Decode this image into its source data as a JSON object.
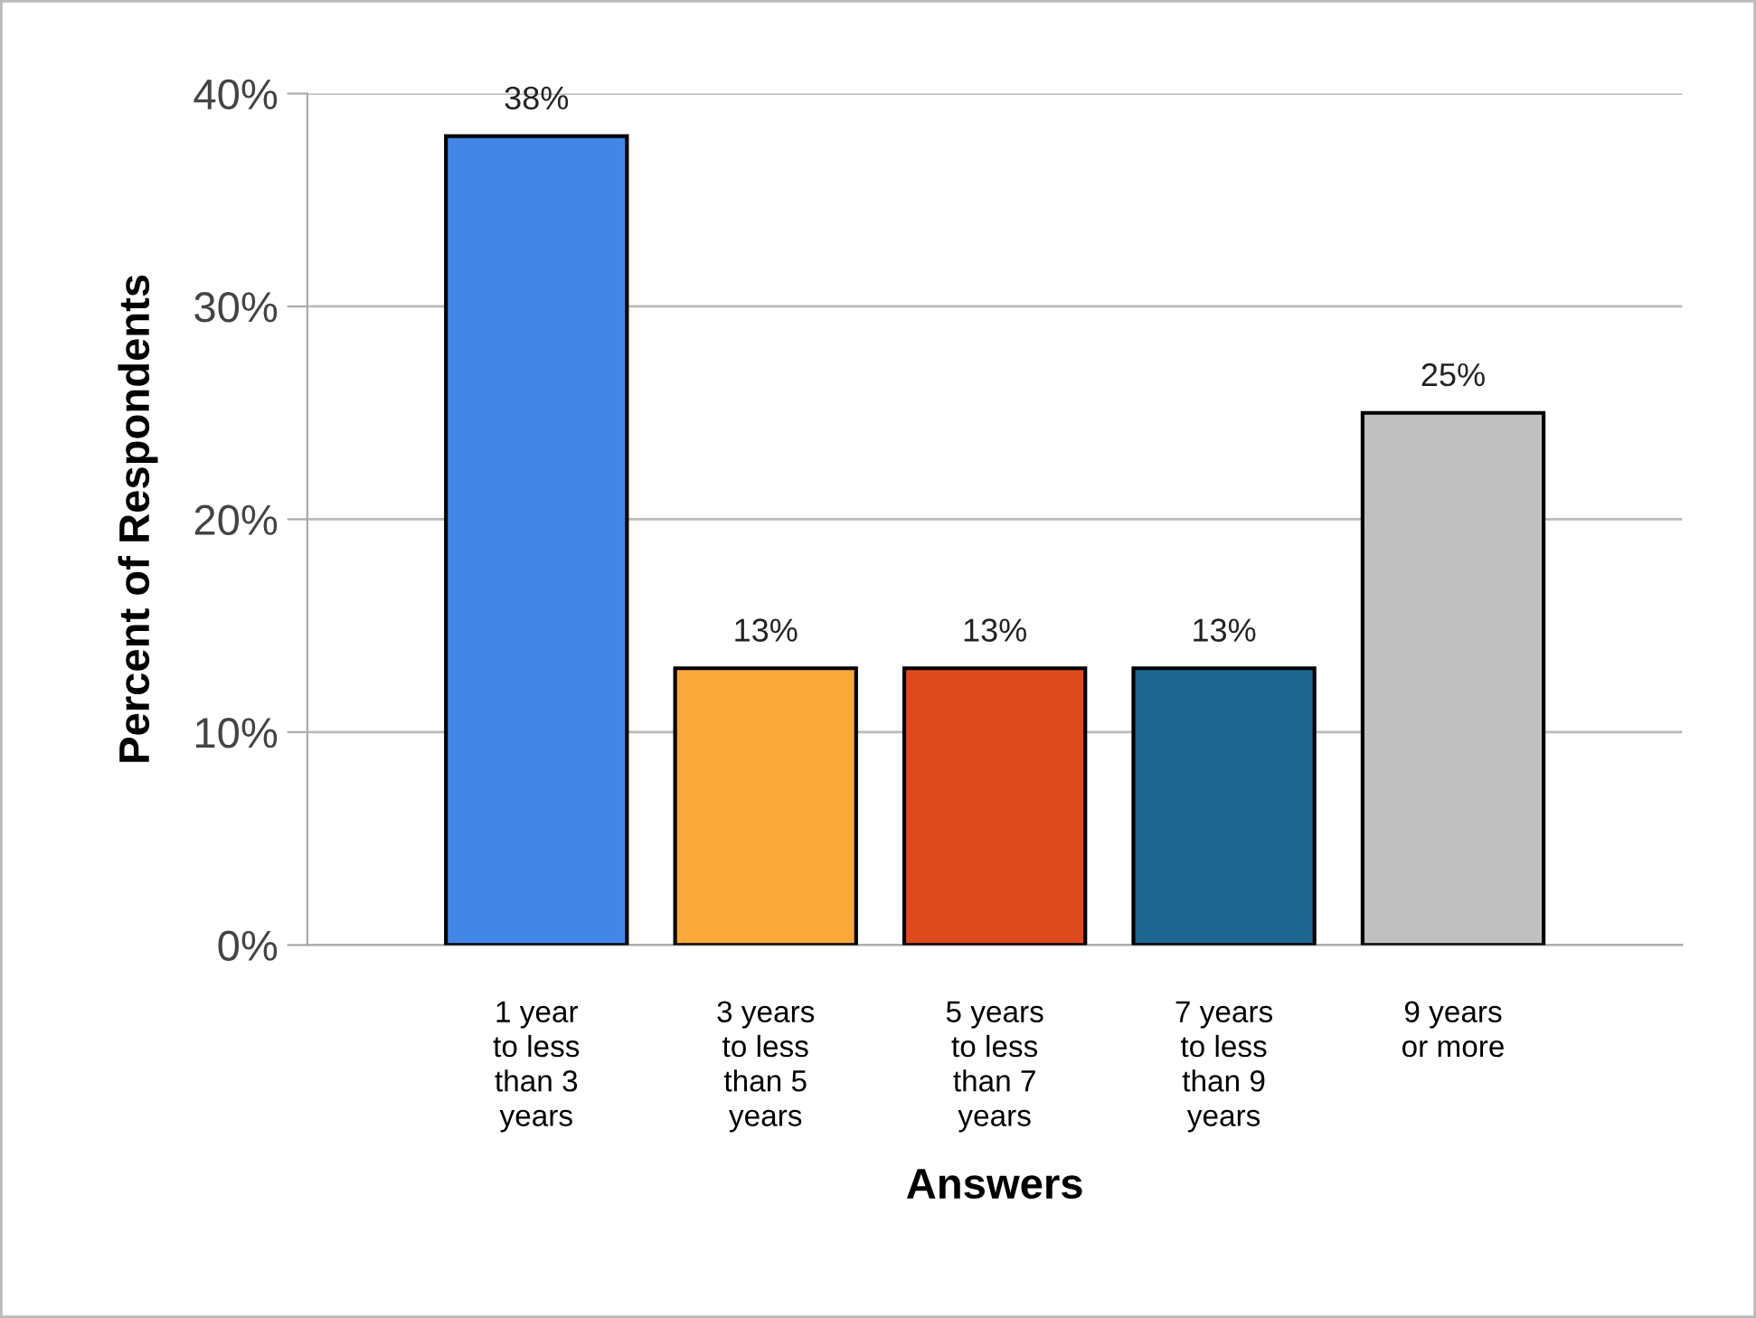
{
  "chart_data": {
    "type": "bar",
    "xlabel": "Answers",
    "ylabel": "Percent of Respondents",
    "categories": [
      "1 year\nto less\nthan 3\nyears",
      "3 years\nto less\nthan 5\nyears",
      "5 years\nto less\nthan 7\nyears",
      "7 years\nto less\nthan 9\nyears",
      "9 years\nor more"
    ],
    "values": [
      38,
      13,
      13,
      13,
      25
    ],
    "value_labels": [
      "38%",
      "13%",
      "13%",
      "13%",
      "25%"
    ],
    "colors": [
      "#4286e8",
      "#f9a83a",
      "#dc4a1e",
      "#1e6690",
      "#c0c0c0"
    ],
    "ylim": [
      0,
      40
    ],
    "yticks": [
      {
        "value": 0,
        "label": "0%"
      },
      {
        "value": 10,
        "label": "10%"
      },
      {
        "value": 20,
        "label": "20%"
      },
      {
        "value": 30,
        "label": "30%"
      },
      {
        "value": 40,
        "label": "40%"
      }
    ],
    "grid": "y",
    "legend": false
  }
}
